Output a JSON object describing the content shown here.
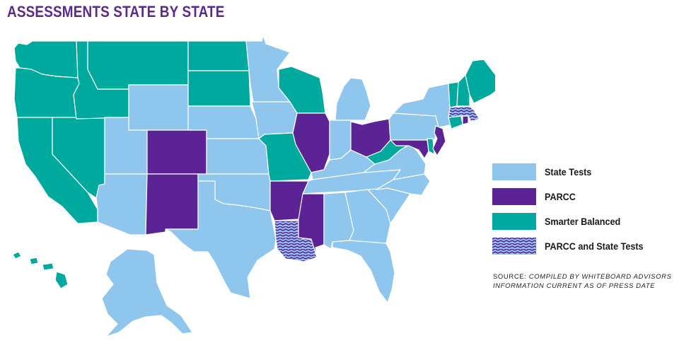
{
  "title": "ASSESSMENTS STATE BY STATE",
  "colors": {
    "state_tests": "#8ec6ee",
    "parcc": "#5b2393",
    "smarter_balanced": "#00a99d",
    "hatch_a": "#5b2393",
    "hatch_b": "#8ec6ee"
  },
  "legend": [
    {
      "key": "state_tests",
      "label": "State Tests"
    },
    {
      "key": "parcc",
      "label": "PARCC"
    },
    {
      "key": "smarter_balanced",
      "label": "Smarter Balanced"
    },
    {
      "key": "mixed",
      "label": "PARCC and State Tests"
    }
  ],
  "source": {
    "prefix": "SOURCE:",
    "line1": "COMPILED BY WHITEBOARD ADVISORS",
    "line2": "INFORMATION CURRENT AS OF PRESS DATE"
  },
  "states": [
    {
      "id": "WA",
      "category": "smarter_balanced"
    },
    {
      "id": "OR",
      "category": "smarter_balanced"
    },
    {
      "id": "CA",
      "category": "smarter_balanced"
    },
    {
      "id": "NV",
      "category": "smarter_balanced"
    },
    {
      "id": "ID",
      "category": "smarter_balanced"
    },
    {
      "id": "MT",
      "category": "smarter_balanced"
    },
    {
      "id": "WY",
      "category": "state_tests"
    },
    {
      "id": "UT",
      "category": "state_tests"
    },
    {
      "id": "AZ",
      "category": "state_tests"
    },
    {
      "id": "CO",
      "category": "parcc"
    },
    {
      "id": "NM",
      "category": "parcc"
    },
    {
      "id": "ND",
      "category": "smarter_balanced"
    },
    {
      "id": "SD",
      "category": "smarter_balanced"
    },
    {
      "id": "NE",
      "category": "state_tests"
    },
    {
      "id": "KS",
      "category": "state_tests"
    },
    {
      "id": "OK",
      "category": "state_tests"
    },
    {
      "id": "TX",
      "category": "state_tests"
    },
    {
      "id": "MN",
      "category": "state_tests"
    },
    {
      "id": "IA",
      "category": "state_tests"
    },
    {
      "id": "MO",
      "category": "smarter_balanced"
    },
    {
      "id": "AR",
      "category": "parcc"
    },
    {
      "id": "LA",
      "category": "mixed"
    },
    {
      "id": "WI",
      "category": "smarter_balanced"
    },
    {
      "id": "IL",
      "category": "parcc"
    },
    {
      "id": "MI",
      "category": "state_tests"
    },
    {
      "id": "IN",
      "category": "state_tests"
    },
    {
      "id": "OH",
      "category": "parcc"
    },
    {
      "id": "KY",
      "category": "state_tests"
    },
    {
      "id": "TN",
      "category": "state_tests"
    },
    {
      "id": "MS",
      "category": "parcc"
    },
    {
      "id": "AL",
      "category": "state_tests"
    },
    {
      "id": "GA",
      "category": "state_tests"
    },
    {
      "id": "FL",
      "category": "state_tests"
    },
    {
      "id": "SC",
      "category": "state_tests"
    },
    {
      "id": "NC",
      "category": "state_tests"
    },
    {
      "id": "VA",
      "category": "state_tests"
    },
    {
      "id": "WV",
      "category": "smarter_balanced"
    },
    {
      "id": "PA",
      "category": "state_tests"
    },
    {
      "id": "NY",
      "category": "state_tests"
    },
    {
      "id": "MD",
      "category": "parcc"
    },
    {
      "id": "DE",
      "category": "smarter_balanced"
    },
    {
      "id": "NJ",
      "category": "parcc"
    },
    {
      "id": "CT",
      "category": "smarter_balanced"
    },
    {
      "id": "RI",
      "category": "parcc"
    },
    {
      "id": "MA",
      "category": "mixed"
    },
    {
      "id": "VT",
      "category": "smarter_balanced"
    },
    {
      "id": "NH",
      "category": "smarter_balanced"
    },
    {
      "id": "ME",
      "category": "smarter_balanced"
    },
    {
      "id": "AK",
      "category": "state_tests"
    },
    {
      "id": "HI",
      "category": "smarter_balanced"
    }
  ]
}
